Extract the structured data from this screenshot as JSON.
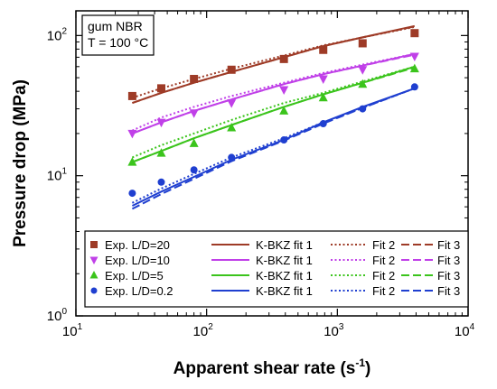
{
  "chart_data": {
    "type": "scatter",
    "x_scale": "log",
    "y_scale": "log",
    "xlim": [
      10,
      10000
    ],
    "ylim": [
      1,
      150
    ],
    "xlabel": "Apparent shear rate (s",
    "xlabel_sup": "-1",
    "xlabel_end": ")",
    "ylabel": "Pressure drop (MPa)",
    "x_ticks": [
      {
        "base": "10",
        "exp": "1",
        "value": 10
      },
      {
        "base": "10",
        "exp": "2",
        "value": 100
      },
      {
        "base": "10",
        "exp": "3",
        "value": 1000
      },
      {
        "base": "10",
        "exp": "4",
        "value": 10000
      }
    ],
    "y_ticks": [
      {
        "base": "10",
        "exp": "0",
        "value": 1
      },
      {
        "base": "10",
        "exp": "1",
        "value": 10
      },
      {
        "base": "10",
        "exp": "2",
        "value": 100
      }
    ],
    "info_box": [
      "gum NBR",
      "T = 100 °C"
    ],
    "series": [
      {
        "color": "#9e3b27",
        "marker": "square",
        "exp_label": "Exp. L/D=20",
        "x": [
          27,
          45,
          80,
          155,
          390,
          780,
          1560,
          3900
        ],
        "exp_y": [
          37,
          42,
          49,
          57,
          68,
          79,
          88,
          104
        ],
        "fit1_label": "K-BKZ fit 1",
        "fit1_y": [
          33,
          39,
          46,
          55,
          70,
          84,
          97,
          117
        ],
        "fit2_label": "Fit 2",
        "fit2_y": [
          36,
          42,
          49,
          58,
          72,
          85,
          97,
          115
        ],
        "fit3_label": "Fit 3",
        "fit3_y": [
          33,
          39,
          46,
          55,
          70,
          84,
          97,
          116
        ]
      },
      {
        "color": "#c040e8",
        "marker": "triangle-down",
        "exp_label": "Exp. L/D=10",
        "x": [
          27,
          45,
          80,
          155,
          390,
          780,
          1560,
          3900
        ],
        "exp_y": [
          20,
          24,
          28,
          33,
          41,
          49,
          57,
          71
        ],
        "fit1_label": "K-BKZ fit 1",
        "fit1_y": [
          20,
          24,
          29,
          35,
          45,
          53,
          61,
          74
        ],
        "fit2_label": "Fit 2",
        "fit2_y": [
          21,
          26,
          31,
          37,
          46,
          54,
          62,
          74
        ],
        "fit3_label": "Fit 3",
        "fit3_y": [
          20,
          24,
          29,
          35,
          45,
          53,
          61,
          73
        ]
      },
      {
        "color": "#3bc41c",
        "marker": "triangle-up",
        "exp_label": "Exp. L/D=5",
        "x": [
          27,
          45,
          80,
          155,
          390,
          780,
          1560,
          3900
        ],
        "exp_y": [
          12.5,
          14.5,
          17,
          22,
          29,
          36,
          45,
          58
        ],
        "fit1_label": "K-BKZ fit 1",
        "fit1_y": [
          12.5,
          15,
          18.5,
          23,
          31,
          38,
          46,
          60
        ],
        "fit2_label": "Fit 2",
        "fit2_y": [
          13.5,
          16.5,
          20,
          25,
          33,
          39,
          47,
          60
        ],
        "fit3_label": "Fit 3",
        "fit3_y": [
          12.5,
          15,
          18.5,
          23,
          31,
          38,
          46,
          59
        ]
      },
      {
        "color": "#1f3fd0",
        "marker": "circle",
        "exp_label": "Exp. L/D=0.2",
        "x": [
          27,
          45,
          80,
          155,
          390,
          780,
          1560,
          3900
        ],
        "exp_y": [
          7.5,
          9,
          11,
          13.5,
          18,
          23.5,
          30,
          43
        ],
        "fit1_label": "K-BKZ fit 1",
        "fit1_y": [
          6.1,
          7.7,
          9.8,
          13,
          18,
          24,
          31,
          42
        ],
        "fit2_label": "Fit 2",
        "fit2_y": [
          6.4,
          8.1,
          10.3,
          13.5,
          18.5,
          24,
          30.5,
          42
        ],
        "fit3_label": "Fit 3",
        "fit3_y": [
          5.8,
          7.4,
          9.5,
          12.7,
          17.8,
          23.5,
          30.5,
          42
        ]
      }
    ]
  }
}
